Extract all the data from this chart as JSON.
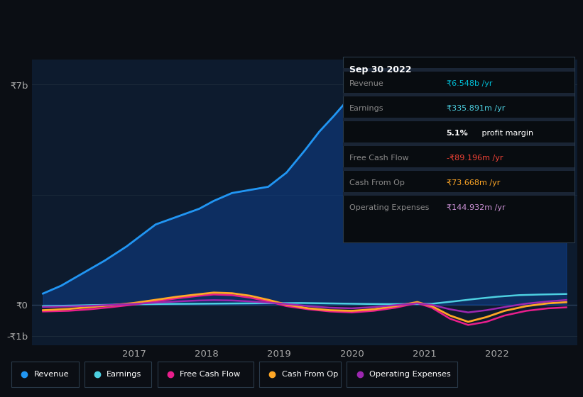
{
  "bg_color": "#0b0e14",
  "chart_bg": "#0d1b2e",
  "title": "Sep 30 2022",
  "ylim": [
    -1300000000.0,
    7800000000.0
  ],
  "yticks": [
    -1000000000.0,
    0,
    7000000000.0
  ],
  "ytick_labels": [
    "-₹1b",
    "₹0",
    "₹7b"
  ],
  "xlim": [
    2015.6,
    2023.1
  ],
  "xticks": [
    2017,
    2018,
    2019,
    2020,
    2021,
    2022
  ],
  "xlabel_color": "#aaaaaa",
  "grid_color": "#1e2d3d",
  "legend_items": [
    {
      "label": "Revenue",
      "color": "#2196f3"
    },
    {
      "label": "Earnings",
      "color": "#4dd0e1"
    },
    {
      "label": "Free Cash Flow",
      "color": "#e91e8c"
    },
    {
      "label": "Cash From Op",
      "color": "#ffa726"
    },
    {
      "label": "Operating Expenses",
      "color": "#9c27b0"
    }
  ],
  "revenue_x": [
    2015.75,
    2016.0,
    2016.3,
    2016.6,
    2016.9,
    2017.1,
    2017.3,
    2017.6,
    2017.9,
    2018.1,
    2018.35,
    2018.6,
    2018.85,
    2019.1,
    2019.35,
    2019.55,
    2019.75,
    2019.9,
    2020.1,
    2020.35,
    2020.6,
    2020.85,
    2021.05,
    2021.3,
    2021.55,
    2021.8,
    2022.0,
    2022.2,
    2022.5,
    2022.75,
    2022.95
  ],
  "revenue_y": [
    350000000.0,
    600000000.0,
    1000000000.0,
    1400000000.0,
    1850000000.0,
    2200000000.0,
    2550000000.0,
    2800000000.0,
    3050000000.0,
    3300000000.0,
    3550000000.0,
    3650000000.0,
    3750000000.0,
    4200000000.0,
    4900000000.0,
    5500000000.0,
    6000000000.0,
    6400000000.0,
    6550000000.0,
    6300000000.0,
    5850000000.0,
    5300000000.0,
    4600000000.0,
    3200000000.0,
    3500000000.0,
    4300000000.0,
    5000000000.0,
    5600000000.0,
    6100000000.0,
    6400000000.0,
    6548000000.0
  ],
  "earnings_x": [
    2015.75,
    2016.2,
    2016.6,
    2017.0,
    2017.4,
    2017.8,
    2018.1,
    2018.4,
    2018.7,
    2019.0,
    2019.3,
    2019.6,
    2019.9,
    2020.2,
    2020.5,
    2020.8,
    2021.1,
    2021.4,
    2021.7,
    2022.0,
    2022.3,
    2022.6,
    2022.95
  ],
  "earnings_y": [
    -50000000.0,
    -30000000.0,
    -10000000.0,
    10000000.0,
    20000000.0,
    25000000.0,
    30000000.0,
    35000000.0,
    40000000.0,
    45000000.0,
    50000000.0,
    40000000.0,
    30000000.0,
    20000000.0,
    15000000.0,
    20000000.0,
    25000000.0,
    100000000.0,
    180000000.0,
    250000000.0,
    300000000.0,
    320000000.0,
    336000000.0
  ],
  "fcf_x": [
    2015.75,
    2016.1,
    2016.4,
    2016.7,
    2017.0,
    2017.3,
    2017.6,
    2017.9,
    2018.1,
    2018.35,
    2018.6,
    2018.85,
    2019.1,
    2019.4,
    2019.7,
    2020.0,
    2020.3,
    2020.6,
    2020.9,
    2021.1,
    2021.35,
    2021.6,
    2021.85,
    2022.1,
    2022.4,
    2022.7,
    2022.95
  ],
  "fcf_y": [
    -220000000.0,
    -200000000.0,
    -150000000.0,
    -80000000.0,
    0.0,
    100000000.0,
    200000000.0,
    280000000.0,
    320000000.0,
    300000000.0,
    220000000.0,
    100000000.0,
    -50000000.0,
    -150000000.0,
    -220000000.0,
    -250000000.0,
    -200000000.0,
    -100000000.0,
    50000000.0,
    -100000000.0,
    -450000000.0,
    -650000000.0,
    -550000000.0,
    -350000000.0,
    -200000000.0,
    -120000000.0,
    -89000000.0
  ],
  "cashfromop_x": [
    2015.75,
    2016.1,
    2016.4,
    2016.7,
    2017.0,
    2017.3,
    2017.6,
    2017.9,
    2018.1,
    2018.35,
    2018.6,
    2018.85,
    2019.1,
    2019.4,
    2019.7,
    2020.0,
    2020.3,
    2020.6,
    2020.9,
    2021.1,
    2021.35,
    2021.6,
    2021.85,
    2022.1,
    2022.4,
    2022.7,
    2022.95
  ],
  "cashfromop_y": [
    -180000000.0,
    -140000000.0,
    -80000000.0,
    -20000000.0,
    50000000.0,
    150000000.0,
    250000000.0,
    330000000.0,
    380000000.0,
    360000000.0,
    280000000.0,
    150000000.0,
    0.0,
    -120000000.0,
    -180000000.0,
    -200000000.0,
    -150000000.0,
    -50000000.0,
    80000000.0,
    -50000000.0,
    -350000000.0,
    -550000000.0,
    -400000000.0,
    -200000000.0,
    -50000000.0,
    40000000.0,
    74000000.0
  ],
  "opex_x": [
    2015.75,
    2016.1,
    2016.4,
    2016.7,
    2017.0,
    2017.3,
    2017.6,
    2017.9,
    2018.1,
    2018.35,
    2018.6,
    2018.85,
    2019.1,
    2019.4,
    2019.7,
    2020.0,
    2020.3,
    2020.6,
    2020.9,
    2021.1,
    2021.35,
    2021.6,
    2021.85,
    2022.1,
    2022.4,
    2022.7,
    2022.95
  ],
  "opex_y": [
    -80000000.0,
    -60000000.0,
    -40000000.0,
    -10000000.0,
    20000000.0,
    60000000.0,
    100000000.0,
    130000000.0,
    140000000.0,
    130000000.0,
    100000000.0,
    60000000.0,
    20000000.0,
    -50000000.0,
    -100000000.0,
    -120000000.0,
    -80000000.0,
    -20000000.0,
    40000000.0,
    -10000000.0,
    -150000000.0,
    -250000000.0,
    -180000000.0,
    -80000000.0,
    30000000.0,
    100000000.0,
    145000000.0
  ],
  "info_box_rows": [
    {
      "label": "Revenue",
      "value": "₹6.548b /yr",
      "value_color": "#00bcd4"
    },
    {
      "label": "Earnings",
      "value": "₹335.891m /yr",
      "value_color": "#4dd0e1"
    },
    {
      "label": "",
      "value": "5.1%",
      "value_color": "#ffffff",
      "suffix": " profit margin",
      "suffix_color": "#ffffff"
    },
    {
      "label": "Free Cash Flow",
      "value": "-₹89.196m /yr",
      "value_color": "#f44336"
    },
    {
      "label": "Cash From Op",
      "value": "₹73.668m /yr",
      "value_color": "#ffa726"
    },
    {
      "label": "Operating Expenses",
      "value": "₹144.932m /yr",
      "value_color": "#ce93d8"
    }
  ]
}
